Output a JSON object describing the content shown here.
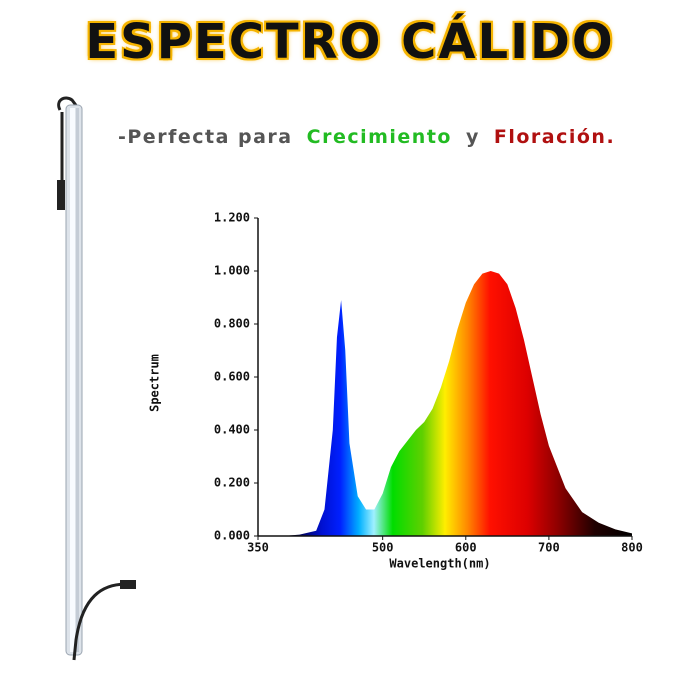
{
  "chart_data": {
    "type": "area",
    "title": "ESPECTRO CÁLIDO",
    "subtitle_parts": [
      {
        "text": "-Perfecta para",
        "color": "#555555"
      },
      {
        "text": "Crecimiento",
        "color": "#22bb22"
      },
      {
        "text": "y",
        "color": "#555555"
      },
      {
        "text": "Floración.",
        "color": "#b01010"
      }
    ],
    "y_label": "Spectrum",
    "x_label": "Wavelength(nm)",
    "x": [
      350,
      380,
      400,
      420,
      430,
      440,
      445,
      450,
      455,
      460,
      470,
      480,
      490,
      500,
      510,
      520,
      530,
      540,
      550,
      560,
      570,
      580,
      590,
      600,
      610,
      620,
      630,
      640,
      650,
      660,
      670,
      680,
      690,
      700,
      720,
      740,
      760,
      780,
      800
    ],
    "values": [
      0,
      0,
      0.005,
      0.02,
      0.1,
      0.4,
      0.75,
      0.89,
      0.7,
      0.35,
      0.15,
      0.1,
      0.1,
      0.16,
      0.26,
      0.32,
      0.36,
      0.4,
      0.43,
      0.48,
      0.56,
      0.66,
      0.78,
      0.88,
      0.95,
      0.99,
      1.0,
      0.99,
      0.95,
      0.86,
      0.74,
      0.6,
      0.46,
      0.34,
      0.18,
      0.09,
      0.05,
      0.025,
      0.01
    ],
    "xlim": [
      350,
      800
    ],
    "ylim": [
      0,
      1.2
    ],
    "xticks": [
      350,
      500,
      600,
      700,
      800
    ],
    "yticks": [
      {
        "value": 0,
        "label": "0.000"
      },
      {
        "value": 0.2,
        "label": "0.200"
      },
      {
        "value": 0.4,
        "label": "0.400"
      },
      {
        "value": 0.6,
        "label": "0.600"
      },
      {
        "value": 0.8,
        "label": "0.800"
      },
      {
        "value": 1.0,
        "label": "1.000"
      },
      {
        "value": 1.2,
        "label": "1.200"
      }
    ]
  }
}
